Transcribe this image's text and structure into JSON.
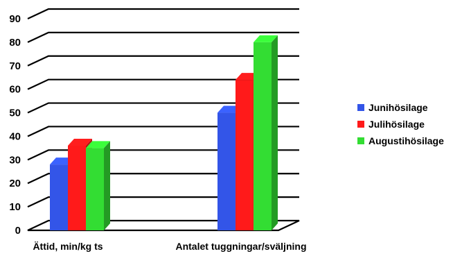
{
  "chart_data": {
    "type": "bar",
    "style": "3d-clustered-column",
    "categories": [
      "Ättid, min/kg ts",
      "Antalet tuggningar/sväljning"
    ],
    "series": [
      {
        "name": "Junihösilage",
        "values": [
          28,
          50
        ],
        "color": "#3355e8"
      },
      {
        "name": "Julihösilage",
        "values": [
          36,
          64
        ],
        "color": "#ff1a1a"
      },
      {
        "name": "Augustihösilage",
        "values": [
          35,
          80
        ],
        "color": "#33dd33"
      }
    ],
    "y_ticks": [
      "0",
      "10",
      "20",
      "30",
      "40",
      "50",
      "60",
      "70",
      "80",
      "90"
    ],
    "ylim": [
      0,
      90
    ],
    "grid": true,
    "legend_position": "right",
    "title": "",
    "xlabel": "",
    "ylabel": ""
  }
}
